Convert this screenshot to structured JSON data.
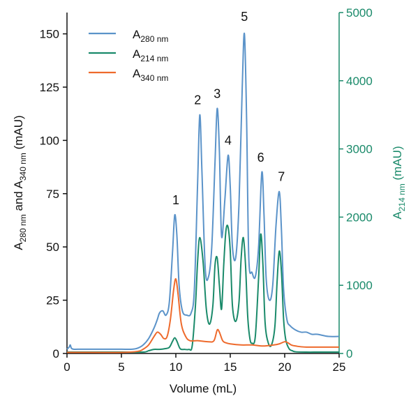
{
  "chart_data": {
    "type": "line",
    "xlabel": "Volume (mL)",
    "ylabel_left": {
      "main_a": "A",
      "sub_a": "280 nm",
      "mid": " and A",
      "sub_b": "340 nm",
      "tail": " (mAU)"
    },
    "ylabel_right": {
      "main": "A",
      "sub": "214 nm",
      "tail": " (mAU)"
    },
    "xlim": [
      0,
      25
    ],
    "ylim_left": [
      0,
      160
    ],
    "ylim_right": [
      0,
      5000
    ],
    "x_ticks": [
      "0",
      "5",
      "10",
      "15",
      "20",
      "25"
    ],
    "y_left_ticks": [
      "0",
      "25",
      "50",
      "75",
      "100",
      "125",
      "150"
    ],
    "y_right_ticks": [
      "0",
      "1000",
      "2000",
      "3000",
      "4000",
      "5000"
    ],
    "legend": [
      {
        "main": "A",
        "sub": "280 nm",
        "color": "#5b93c9"
      },
      {
        "main": "A",
        "sub": "214 nm",
        "color": "#1a8a6a"
      },
      {
        "main": "A",
        "sub": "340 nm",
        "color": "#ee6a2c"
      }
    ],
    "series": [
      {
        "name": "A280 nm",
        "axis": "left",
        "color": "#5b93c9",
        "x": [
          0,
          0.2,
          0.3,
          0.4,
          0.6,
          1,
          2,
          3,
          4,
          5,
          6,
          6.5,
          7,
          7.5,
          8,
          8.3,
          8.5,
          8.8,
          9.1,
          9.4,
          9.7,
          9.9,
          10.1,
          10.3,
          10.6,
          11,
          11.4,
          11.7,
          12.0,
          12.2,
          12.4,
          12.7,
          13.0,
          13.3,
          13.6,
          13.8,
          14.0,
          14.2,
          14.5,
          14.8,
          15.0,
          15.2,
          15.5,
          15.8,
          16.1,
          16.3,
          16.5,
          16.7,
          17.0,
          17.3,
          17.6,
          17.9,
          18.1,
          18.3,
          18.6,
          18.9,
          19.2,
          19.5,
          19.7,
          19.9,
          20.2,
          20.5,
          21,
          21.5,
          22,
          22.5,
          23,
          24,
          25
        ],
        "y": [
          2,
          3,
          4,
          2.5,
          2,
          2,
          2,
          2,
          2,
          2,
          2,
          2.5,
          4,
          7,
          12,
          16,
          19,
          20,
          18,
          24,
          48,
          65,
          55,
          32,
          20,
          18,
          19,
          30,
          80,
          112,
          85,
          40,
          36,
          50,
          90,
          115,
          95,
          55,
          72,
          93,
          78,
          50,
          45,
          70,
          125,
          150,
          110,
          45,
          38,
          36,
          50,
          85,
          65,
          35,
          25,
          32,
          60,
          76,
          58,
          30,
          16,
          13,
          11,
          10,
          10,
          9,
          9,
          8,
          8
        ]
      },
      {
        "name": "A214 nm",
        "axis": "right",
        "color": "#1a8a6a",
        "x": [
          0,
          0.5,
          1,
          5,
          7,
          7.5,
          8,
          8.5,
          9.0,
          9.4,
          9.7,
          9.9,
          10.1,
          10.4,
          10.8,
          11.2,
          11.5,
          11.8,
          12.0,
          12.2,
          12.5,
          12.8,
          13.1,
          13.4,
          13.6,
          13.8,
          14.0,
          14.2,
          14.4,
          14.6,
          14.8,
          15.0,
          15.2,
          15.5,
          15.8,
          16.0,
          16.2,
          16.4,
          16.6,
          16.8,
          17.0,
          17.3,
          17.6,
          17.8,
          18.0,
          18.2,
          18.5,
          18.8,
          19.1,
          19.3,
          19.5,
          19.7,
          19.9,
          20.1,
          20.4,
          20.7,
          21,
          22,
          23,
          24,
          25
        ],
        "y": [
          20,
          20,
          20,
          20,
          20,
          40,
          60,
          60,
          70,
          90,
          180,
          230,
          180,
          70,
          60,
          60,
          110,
          700,
          1350,
          1700,
          1350,
          650,
          430,
          700,
          1300,
          1400,
          1000,
          650,
          1300,
          1800,
          1850,
          1500,
          700,
          470,
          750,
          1400,
          1700,
          1300,
          550,
          220,
          150,
          250,
          1100,
          1750,
          1300,
          450,
          150,
          130,
          400,
          1050,
          1500,
          1200,
          500,
          200,
          70,
          40,
          25,
          20,
          20,
          20,
          20
        ]
      },
      {
        "name": "A340 nm",
        "axis": "left",
        "color": "#ee6a2c",
        "x": [
          0,
          1,
          5,
          6.5,
          7,
          7.5,
          8,
          8.3,
          8.6,
          8.9,
          9.2,
          9.5,
          9.8,
          10.0,
          10.2,
          10.5,
          10.9,
          11.3,
          12,
          13,
          13.5,
          13.8,
          14.0,
          14.3,
          14.6,
          15,
          16,
          17,
          18,
          19,
          19.5,
          20,
          20.3,
          20.6,
          21,
          22,
          25
        ],
        "y": [
          0.5,
          0.5,
          0.5,
          1,
          2,
          4,
          8,
          10,
          9,
          7,
          8,
          16,
          30,
          35,
          28,
          14,
          8,
          6,
          6,
          5.5,
          6,
          11,
          10,
          6,
          5,
          4.5,
          4,
          4,
          3.5,
          4,
          4.5,
          5.5,
          5,
          4,
          3.5,
          3,
          3
        ]
      }
    ],
    "peak_labels": [
      {
        "text": "1",
        "x": 10.0,
        "y": 70
      },
      {
        "text": "2",
        "x": 12.0,
        "y": 117
      },
      {
        "text": "3",
        "x": 13.8,
        "y": 120
      },
      {
        "text": "4",
        "x": 14.8,
        "y": 98
      },
      {
        "text": "5",
        "x": 16.3,
        "y": 156
      },
      {
        "text": "6",
        "x": 17.8,
        "y": 90
      },
      {
        "text": "7",
        "x": 19.7,
        "y": 81
      }
    ]
  }
}
